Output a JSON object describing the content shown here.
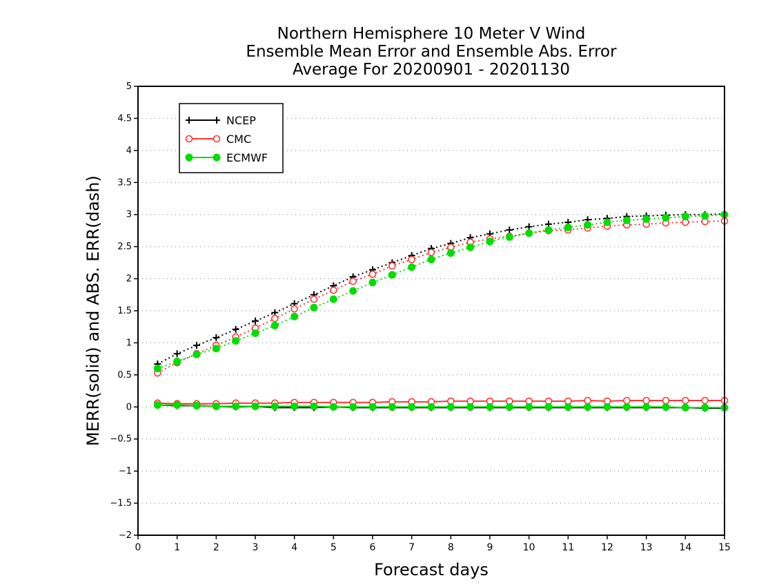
{
  "title_lines": [
    "Northern Hemisphere 10 Meter V Wind",
    "Ensemble Mean Error and Ensemble Abs. Error",
    "Average For 20200901 - 20201130"
  ],
  "chart_data": {
    "type": "line",
    "xlabel": "Forecast days",
    "ylabel": "MERR(solid) and ABS. ERR(dash)",
    "xlim": [
      0,
      15
    ],
    "ylim": [
      -2,
      5
    ],
    "xticks": [
      0,
      1,
      2,
      3,
      4,
      5,
      6,
      7,
      8,
      9,
      10,
      11,
      12,
      13,
      14,
      15
    ],
    "yticks": [
      -2,
      -1.5,
      -1,
      -0.5,
      0,
      0.5,
      1,
      1.5,
      2,
      2.5,
      3,
      3.5,
      4,
      4.5,
      5
    ],
    "grid": "horizontal dotted",
    "legend_position": "top-left",
    "x": [
      0.5,
      1,
      1.5,
      2,
      2.5,
      3,
      3.5,
      4,
      4.5,
      5,
      5.5,
      6,
      6.5,
      7,
      7.5,
      8,
      8.5,
      9,
      9.5,
      10,
      10.5,
      11,
      11.5,
      12,
      12.5,
      13,
      13.5,
      14,
      14.5,
      15
    ],
    "series": [
      {
        "name": "NCEP",
        "color": "#000000",
        "marker": "plus",
        "abs_err": [
          0.67,
          0.83,
          0.96,
          1.08,
          1.21,
          1.34,
          1.47,
          1.61,
          1.75,
          1.89,
          2.03,
          2.14,
          2.25,
          2.36,
          2.47,
          2.55,
          2.64,
          2.7,
          2.76,
          2.81,
          2.85,
          2.88,
          2.92,
          2.94,
          2.97,
          2.98,
          2.99,
          3.0,
          3.0,
          3.01
        ],
        "mean_err": [
          0.03,
          0.02,
          0.02,
          0.01,
          0.0,
          0.01,
          -0.01,
          -0.01,
          -0.01,
          0.0,
          -0.01,
          -0.01,
          -0.01,
          -0.01,
          -0.01,
          -0.01,
          -0.01,
          -0.01,
          -0.01,
          -0.01,
          -0.01,
          -0.01,
          -0.01,
          -0.01,
          -0.01,
          -0.01,
          -0.01,
          -0.01,
          -0.02,
          -0.02
        ]
      },
      {
        "name": "CMC",
        "color": "#ff3333",
        "marker": "open-circle",
        "abs_err": [
          0.53,
          0.69,
          0.83,
          0.96,
          1.09,
          1.23,
          1.38,
          1.53,
          1.68,
          1.82,
          1.96,
          2.07,
          2.2,
          2.3,
          2.41,
          2.49,
          2.57,
          2.62,
          2.66,
          2.71,
          2.75,
          2.76,
          2.79,
          2.82,
          2.84,
          2.85,
          2.87,
          2.88,
          2.89,
          2.9
        ],
        "mean_err": [
          0.06,
          0.05,
          0.05,
          0.05,
          0.06,
          0.06,
          0.06,
          0.07,
          0.07,
          0.07,
          0.07,
          0.07,
          0.08,
          0.08,
          0.08,
          0.09,
          0.09,
          0.09,
          0.09,
          0.09,
          0.09,
          0.09,
          0.1,
          0.09,
          0.1,
          0.1,
          0.1,
          0.1,
          0.1,
          0.1
        ]
      },
      {
        "name": "ECMWF",
        "color": "#00dd00",
        "marker": "filled-circle",
        "abs_err": [
          0.6,
          0.71,
          0.82,
          0.91,
          1.03,
          1.15,
          1.27,
          1.41,
          1.55,
          1.68,
          1.81,
          1.94,
          2.06,
          2.18,
          2.3,
          2.4,
          2.49,
          2.58,
          2.65,
          2.71,
          2.76,
          2.8,
          2.84,
          2.88,
          2.91,
          2.93,
          2.95,
          2.97,
          2.98,
          3.0
        ],
        "mean_err": [
          0.03,
          0.03,
          0.02,
          0.01,
          0.01,
          0.01,
          0.01,
          0.01,
          0.01,
          0.0,
          0.0,
          0.0,
          0.0,
          0.0,
          0.0,
          0.0,
          0.0,
          0.0,
          0.0,
          0.0,
          0.0,
          0.0,
          0.0,
          0.0,
          0.0,
          0.0,
          0.0,
          -0.01,
          -0.01,
          -0.01
        ]
      }
    ]
  }
}
